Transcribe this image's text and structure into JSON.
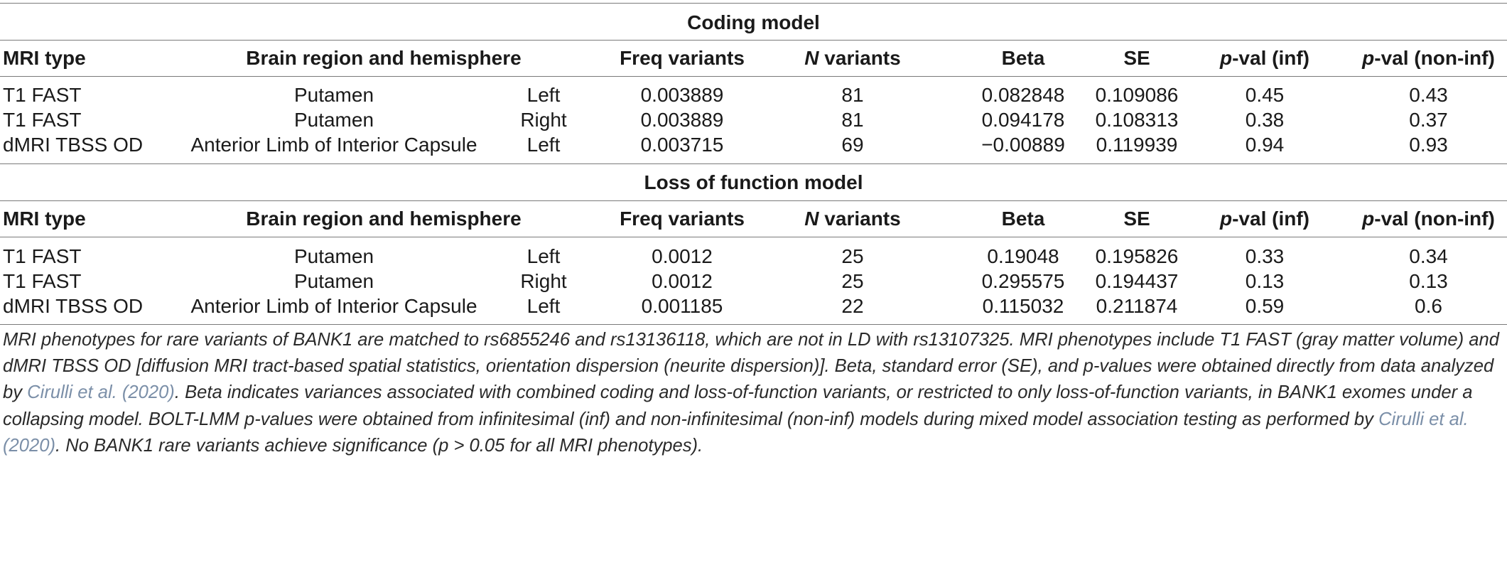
{
  "sections": [
    {
      "title": "Coding model",
      "headers": {
        "type": "MRI type",
        "region": "Brain region and hemisphere",
        "freq": "Freq variants",
        "n_italic": "N",
        "n_rest": " variants",
        "beta": "Beta",
        "se": "SE",
        "pinf_italic": "p",
        "pinf_rest": "-val (inf)",
        "pnon_italic": "p",
        "pnon_rest": "-val (non-inf)"
      },
      "rows": [
        {
          "type": "T1 FAST",
          "region": "Putamen",
          "hemi": "Left",
          "freq": "0.003889",
          "n": "81",
          "beta": "0.082848",
          "se": "0.109086",
          "pinf": "0.45",
          "pnon": "0.43"
        },
        {
          "type": "T1 FAST",
          "region": "Putamen",
          "hemi": "Right",
          "freq": "0.003889",
          "n": "81",
          "beta": "0.094178",
          "se": "0.108313",
          "pinf": "0.38",
          "pnon": "0.37"
        },
        {
          "type": "dMRI TBSS OD",
          "region": "Anterior Limb of Interior Capsule",
          "hemi": "Left",
          "freq": "0.003715",
          "n": "69",
          "beta": "−0.00889",
          "se": "0.119939",
          "pinf": "0.94",
          "pnon": "0.93"
        }
      ]
    },
    {
      "title": "Loss of function model",
      "headers": {
        "type": "MRI type",
        "region": "Brain region and hemisphere",
        "freq": "Freq variants",
        "n_italic": "N",
        "n_rest": " variants",
        "beta": "Beta",
        "se": "SE",
        "pinf_italic": "p",
        "pinf_rest": "-val (inf)",
        "pnon_italic": "p",
        "pnon_rest": "-val (non-inf)"
      },
      "rows": [
        {
          "type": "T1 FAST",
          "region": "Putamen",
          "hemi": "Left",
          "freq": "0.0012",
          "n": "25",
          "beta": "0.19048",
          "se": "0.195826",
          "pinf": "0.33",
          "pnon": "0.34"
        },
        {
          "type": "T1 FAST",
          "region": "Putamen",
          "hemi": "Right",
          "freq": "0.0012",
          "n": "25",
          "beta": "0.295575",
          "se": "0.194437",
          "pinf": "0.13",
          "pnon": "0.13"
        },
        {
          "type": "dMRI TBSS OD",
          "region": "Anterior Limb of Interior Capsule",
          "hemi": "Left",
          "freq": "0.001185",
          "n": "22",
          "beta": "0.115032",
          "se": "0.211874",
          "pinf": "0.59",
          "pnon": "0.6"
        }
      ]
    }
  ],
  "caption": {
    "part1": "MRI phenotypes for rare variants of BANK1 are matched to rs6855246 and rs13136118, which are not in LD with rs13107325. MRI phenotypes include T1 FAST (gray matter volume) and dMRI TBSS OD [diffusion MRI tract-based spatial statistics, orientation dispersion (neurite dispersion)]. Beta, standard error (SE), and p-values were obtained directly from data analyzed by ",
    "cite1": "Cirulli et al. (2020)",
    "part2": ". Beta indicates variances associated with combined coding and loss-of-function variants, or restricted to only loss-of-function variants, in BANK1 exomes under a collapsing model. BOLT-LMM p-values were obtained from infinitesimal (inf) and non-infinitesimal (non-inf) models during mixed model association testing as performed by ",
    "cite2": "Cirulli et al. (2020)",
    "part3": ". No BANK1 rare variants achieve significance (p > 0.05 for all MRI phenotypes)."
  }
}
